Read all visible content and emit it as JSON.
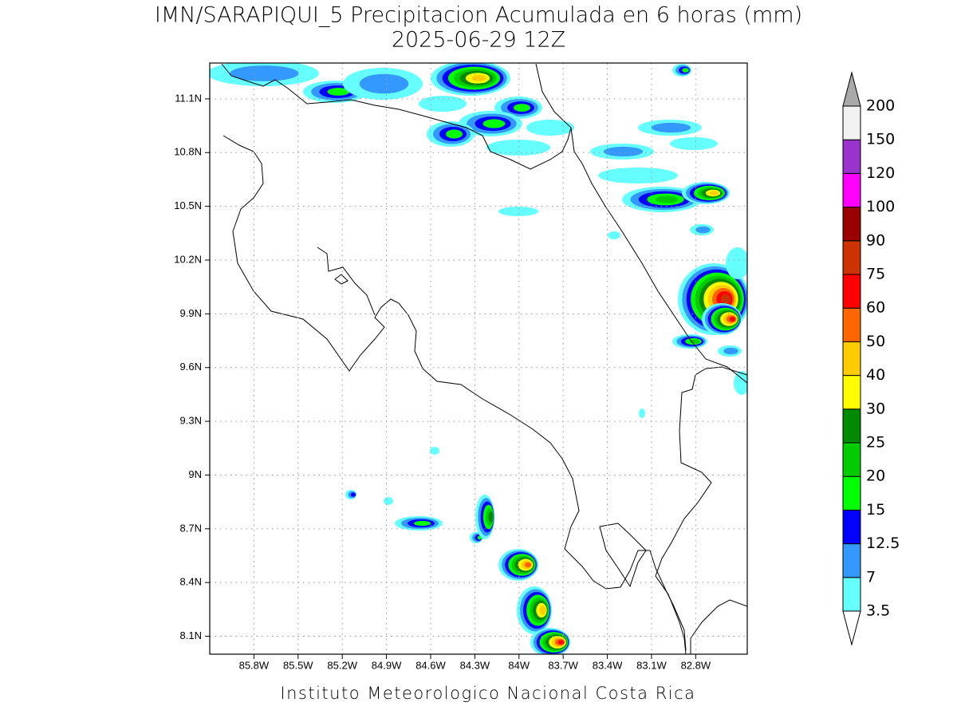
{
  "chart_data": {
    "type": "map",
    "title": "IMN/SARAPIQUI_5 Precipitacion Acumulada en 6 horas (mm)",
    "subtitle": "2025-06-29 12Z",
    "footer": "Instituto Meteorologico Nacional Costa Rica",
    "xlim": [
      -86.1,
      -82.45
    ],
    "ylim": [
      8.0,
      11.3
    ],
    "xticks": [
      {
        "value": -85.8,
        "label": "85.8W"
      },
      {
        "value": -85.5,
        "label": "85.5W"
      },
      {
        "value": -85.2,
        "label": "85.2W"
      },
      {
        "value": -84.9,
        "label": "84.9W"
      },
      {
        "value": -84.6,
        "label": "84.6W"
      },
      {
        "value": -84.3,
        "label": "84.3W"
      },
      {
        "value": -84.0,
        "label": "84W"
      },
      {
        "value": -83.7,
        "label": "83.7W"
      },
      {
        "value": -83.4,
        "label": "83.4W"
      },
      {
        "value": -83.1,
        "label": "83.1W"
      },
      {
        "value": -82.8,
        "label": "82.8W"
      }
    ],
    "yticks": [
      {
        "value": 8.1,
        "label": "8.1N"
      },
      {
        "value": 8.4,
        "label": "8.4N"
      },
      {
        "value": 8.7,
        "label": "8.7N"
      },
      {
        "value": 9.0,
        "label": "9N"
      },
      {
        "value": 9.3,
        "label": "9.3N"
      },
      {
        "value": 9.6,
        "label": "9.6N"
      },
      {
        "value": 9.9,
        "label": "9.9N"
      },
      {
        "value": 10.2,
        "label": "10.2N"
      },
      {
        "value": 10.5,
        "label": "10.5N"
      },
      {
        "value": 10.8,
        "label": "10.8N"
      },
      {
        "value": 11.1,
        "label": "11.1N"
      }
    ],
    "grid": true,
    "colorbar": {
      "levels": [
        3.5,
        7,
        12.5,
        15,
        20,
        25,
        30,
        40,
        50,
        60,
        75,
        90,
        100,
        120,
        150,
        200
      ],
      "colors": [
        "#66ffff",
        "#3399ff",
        "#0000ff",
        "#00ff00",
        "#00cc00",
        "#008a00",
        "#ffff00",
        "#ffcc00",
        "#ff6600",
        "#ff0000",
        "#cc3300",
        "#990000",
        "#ff00ff",
        "#9933cc",
        "#f2f2f2"
      ],
      "under_color": "#ffffff",
      "over_color": "#a9a9a9"
    }
  }
}
